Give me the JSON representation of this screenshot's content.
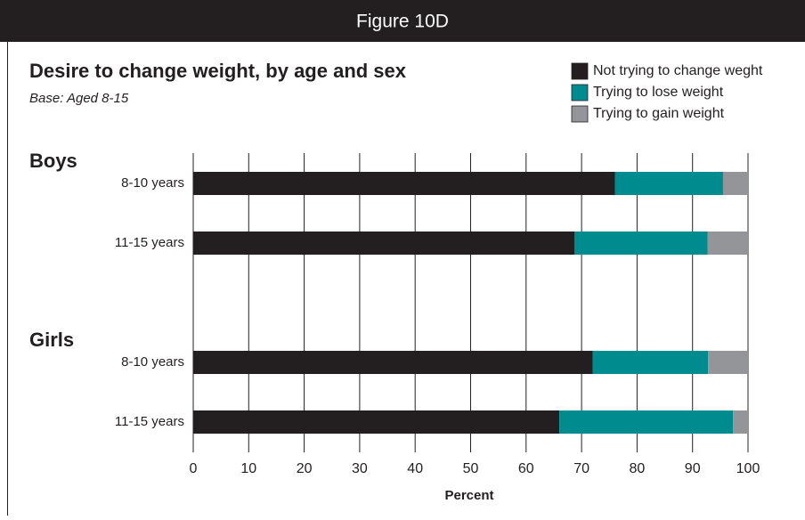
{
  "header": "Figure 10D",
  "chart_data": {
    "type": "stacked-bar-horizontal",
    "title": "Desire to change weight, by age and sex",
    "subtitle": "Base: Aged 8-15",
    "groups": [
      "Boys",
      "Girls"
    ],
    "categories": [
      "8-10 years",
      "11-15 years",
      "8-10 years",
      "11-15 years"
    ],
    "series": [
      {
        "name": "Not trying to change weght",
        "color": "#231f20",
        "values": [
          76,
          68.7,
          72,
          66
        ]
      },
      {
        "name": "Trying to lose weight",
        "color": "#008b8f",
        "values": [
          19.5,
          24,
          20.8,
          31.3
        ]
      },
      {
        "name": "Trying to gain weight",
        "color": "#939598",
        "values": [
          4.5,
          7.3,
          7.2,
          2.7
        ]
      }
    ],
    "xlim": [
      0,
      100
    ],
    "xticks": [
      0,
      10,
      20,
      30,
      40,
      50,
      60,
      70,
      80,
      90,
      100
    ],
    "xlabel": "Percent",
    "grid": true
  }
}
